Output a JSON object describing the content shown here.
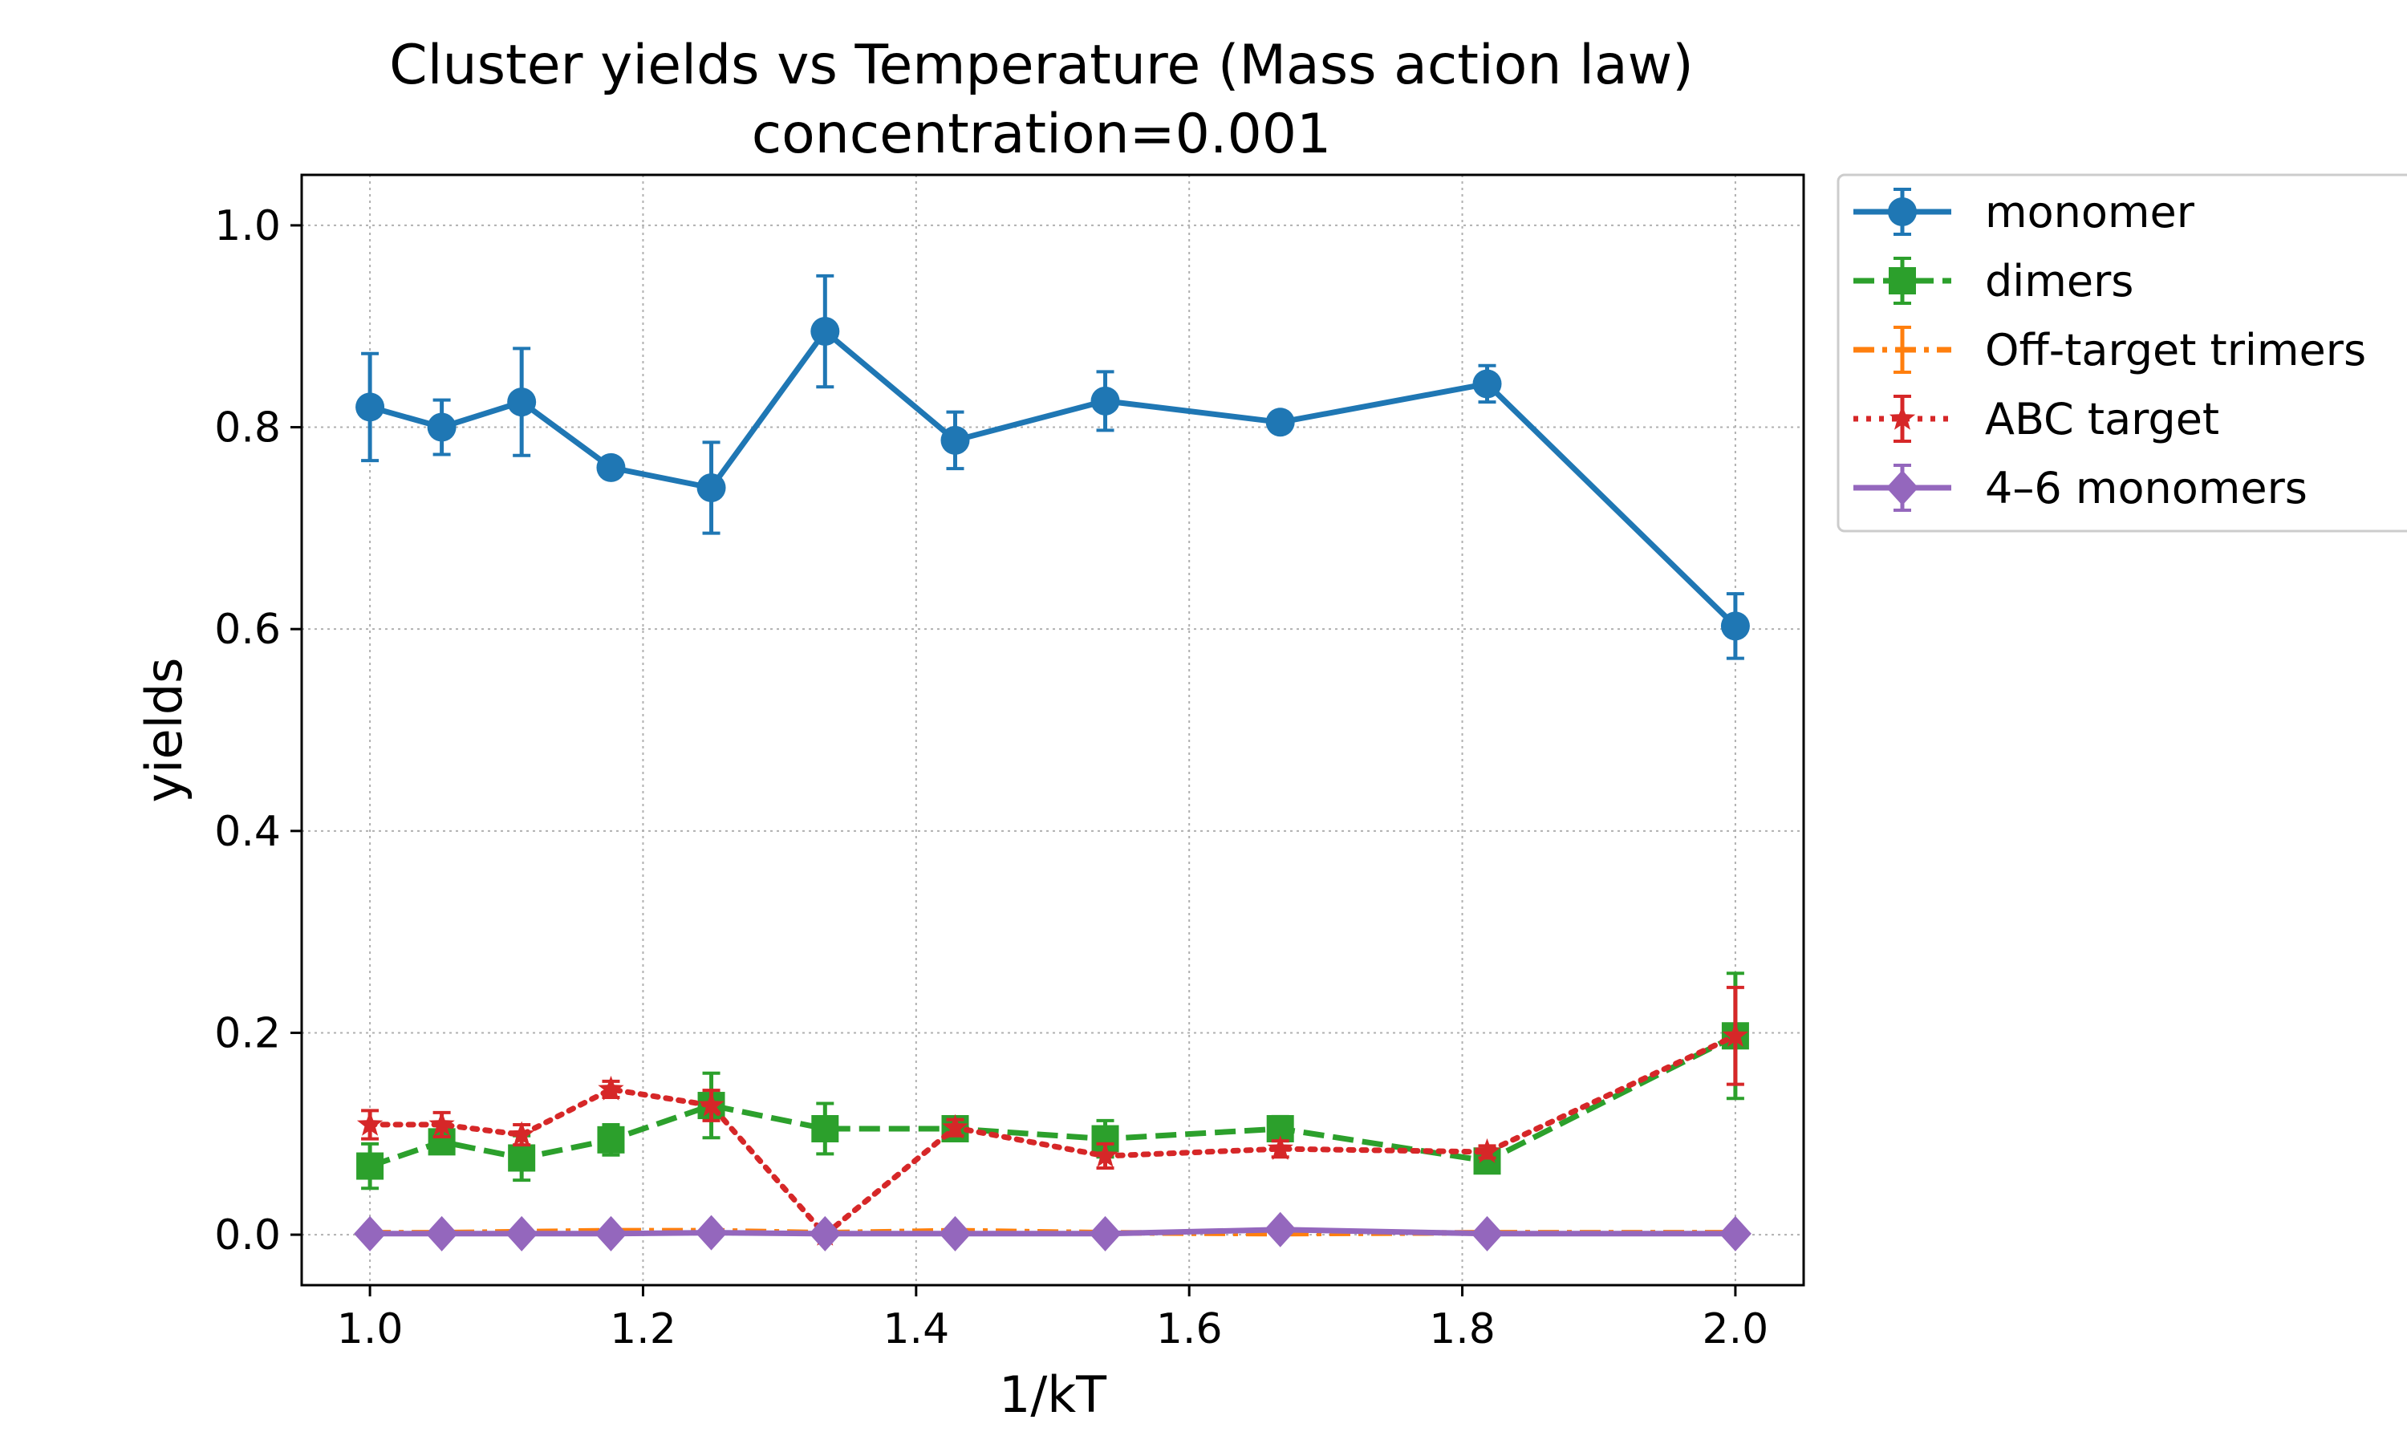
{
  "chart_data": {
    "type": "line",
    "title": "Cluster yields vs Temperature (Mass action law)",
    "subtitle": "concentration=0.001",
    "xlabel": "1/kT",
    "ylabel": "yields",
    "xlim": [
      0.95,
      2.05
    ],
    "ylim": [
      -0.05,
      1.05
    ],
    "xticks": [
      "1.0",
      "1.2",
      "1.4",
      "1.6",
      "1.8",
      "2.0"
    ],
    "yticks": [
      "0.0",
      "0.2",
      "0.4",
      "0.6",
      "0.8",
      "1.0"
    ],
    "grid": true,
    "legend_position": "outside-top-right",
    "x": [
      1.0,
      1.0526,
      1.1111,
      1.1765,
      1.25,
      1.3333,
      1.4286,
      1.5385,
      1.6667,
      1.8182,
      2.0
    ],
    "series": [
      {
        "name": "monomer",
        "color": "#1f77b4",
        "marker": "circle",
        "line_style": "solid",
        "values": [
          0.82,
          0.8,
          0.825,
          0.76,
          0.74,
          0.895,
          0.787,
          0.826,
          0.805,
          0.843,
          0.603
        ],
        "errors": [
          0.053,
          0.027,
          0.053,
          0.008,
          0.045,
          0.055,
          0.028,
          0.029,
          0.008,
          0.018,
          0.032
        ]
      },
      {
        "name": "dimers",
        "color": "#2ca02c",
        "marker": "square",
        "line_style": "dashed",
        "values": [
          0.068,
          0.092,
          0.076,
          0.094,
          0.128,
          0.105,
          0.105,
          0.095,
          0.105,
          0.073,
          0.197
        ],
        "errors": [
          0.022,
          0.01,
          0.022,
          0.015,
          0.032,
          0.025,
          0.01,
          0.018,
          0.012,
          0.008,
          0.062
        ]
      },
      {
        "name": "Off-target trimers",
        "color": "#ff7f0e",
        "marker": "none",
        "line_style": "dashdot",
        "values": [
          0.002,
          0.002,
          0.003,
          0.004,
          0.004,
          0.002,
          0.004,
          0.002,
          0.001,
          0.002,
          0.002
        ],
        "errors": [
          0.002,
          0.002,
          0.002,
          0.002,
          0.002,
          0.002,
          0.002,
          0.002,
          0.002,
          0.002,
          0.002
        ]
      },
      {
        "name": "ABC target",
        "color": "#d62728",
        "marker": "star",
        "line_style": "dotted",
        "values": [
          0.109,
          0.109,
          0.099,
          0.144,
          0.128,
          0.0,
          0.106,
          0.078,
          0.085,
          0.082,
          0.197
        ],
        "errors": [
          0.014,
          0.012,
          0.01,
          0.008,
          0.015,
          0.002,
          0.008,
          0.012,
          0.008,
          0.006,
          0.048
        ]
      },
      {
        "name": "4–6 monomers",
        "color": "#9467bd",
        "marker": "diamond",
        "line_style": "solid",
        "values": [
          0.001,
          0.001,
          0.001,
          0.001,
          0.002,
          0.001,
          0.001,
          0.001,
          0.005,
          0.001,
          0.001
        ],
        "errors": [
          0.001,
          0.001,
          0.001,
          0.001,
          0.001,
          0.001,
          0.001,
          0.001,
          0.001,
          0.001,
          0.001
        ]
      }
    ]
  }
}
